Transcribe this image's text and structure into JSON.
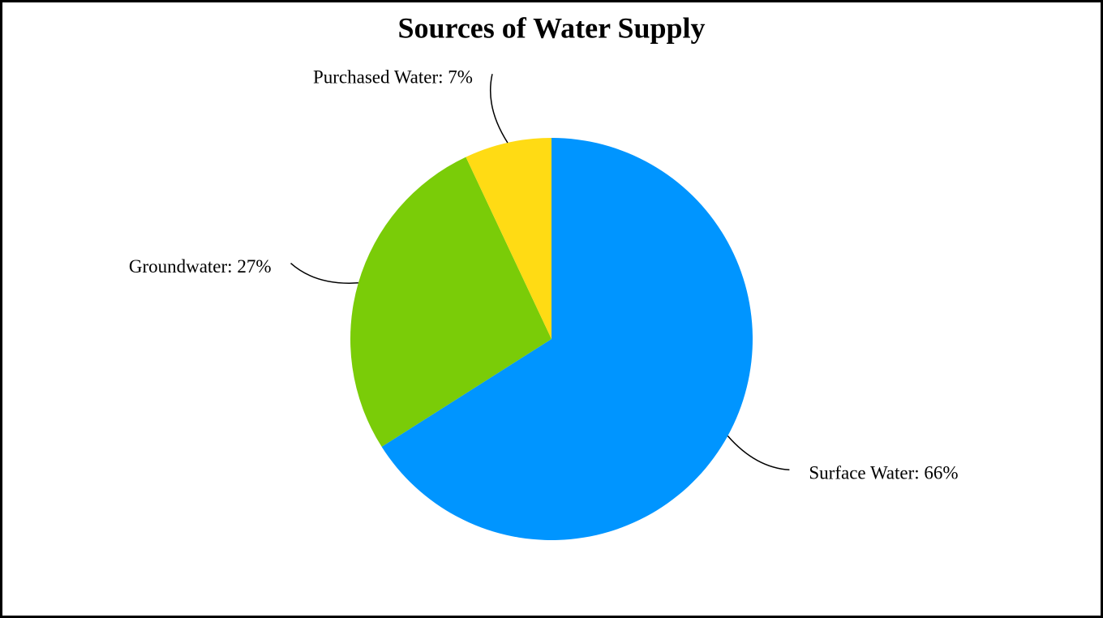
{
  "chart_data": {
    "type": "pie",
    "title": "Sources of Water Supply",
    "values": [
      66,
      27,
      7
    ],
    "value_labels": [
      "Surface Water: 66%",
      "Groundwater: 27%",
      "Purchased Water: 7%"
    ],
    "colors": [
      "#0095ff",
      "#7acc08",
      "#ffdb14"
    ]
  }
}
